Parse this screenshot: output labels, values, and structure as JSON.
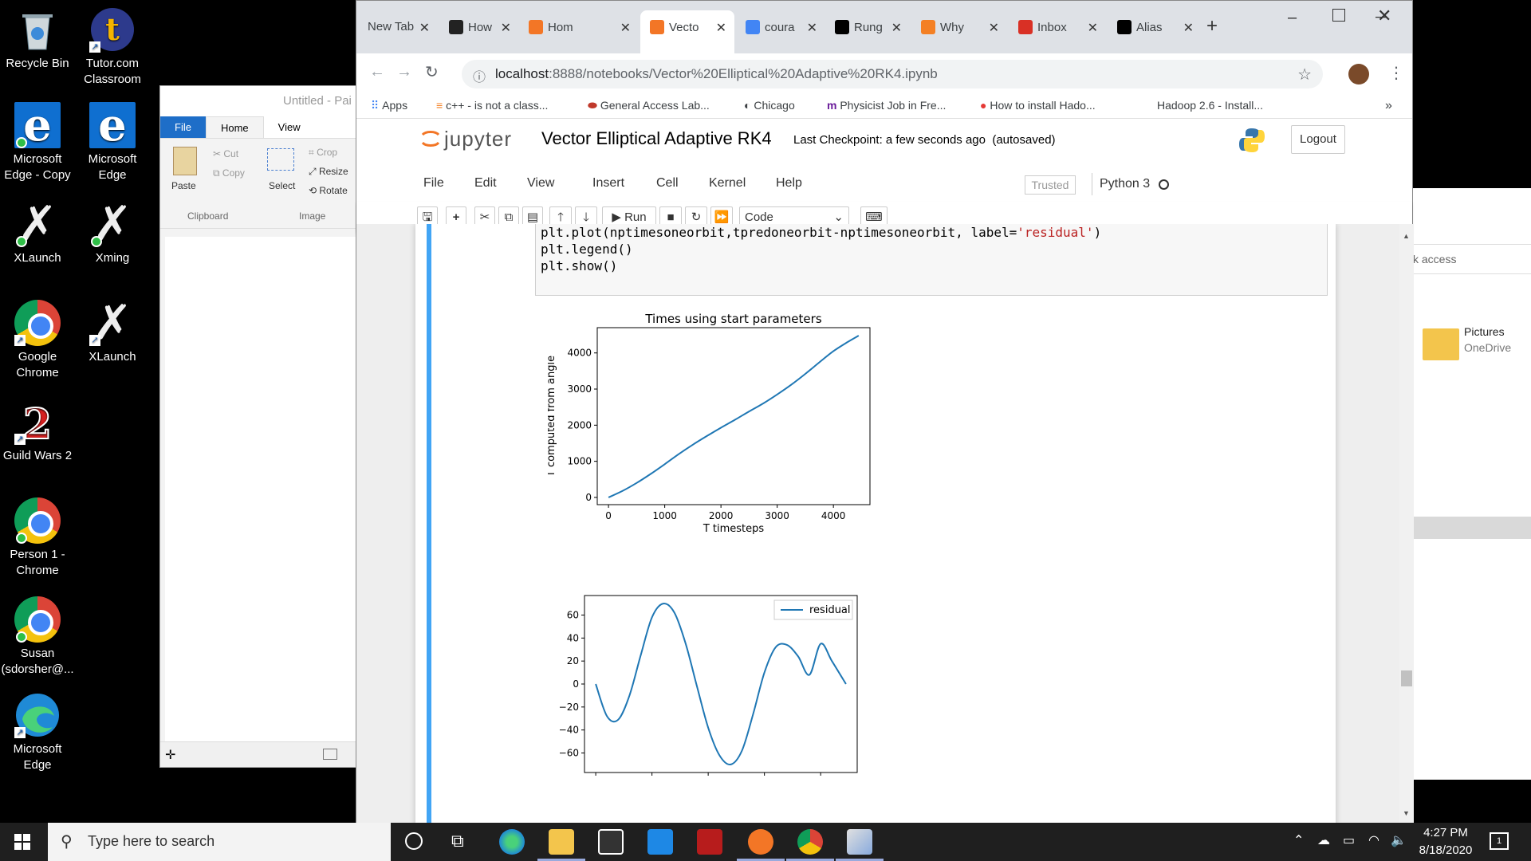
{
  "desktop": {
    "icons": [
      {
        "label1": "Recycle Bin",
        "label2": ""
      },
      {
        "label1": "Tutor.com",
        "label2": "Classroom"
      },
      {
        "label1": "Microsoft",
        "label2": "Edge - Copy"
      },
      {
        "label1": "Microsoft",
        "label2": "Edge"
      },
      {
        "label1": "XLaunch",
        "label2": ""
      },
      {
        "label1": "Xming",
        "label2": ""
      },
      {
        "label1": "Google",
        "label2": "Chrome"
      },
      {
        "label1": "XLaunch",
        "label2": ""
      },
      {
        "label1": "Guild Wars 2",
        "label2": ""
      },
      {
        "label1": "Person 1 -",
        "label2": "Chrome"
      },
      {
        "label1": "Susan",
        "label2": "(sdorsher@..."
      },
      {
        "label1": "Microsoft",
        "label2": "Edge"
      }
    ]
  },
  "paint": {
    "title": "Untitled - Pai",
    "tabs": [
      "File",
      "Home",
      "View"
    ],
    "clipboard": {
      "paste": "Paste",
      "cut": "Cut",
      "copy": "Copy",
      "group": "Clipboard"
    },
    "image": {
      "select": "Select",
      "crop": "Crop",
      "resize": "Resize",
      "rotate": "Rotate",
      "group": "Image"
    }
  },
  "explorer": {
    "access_text": "k access",
    "pictures": "Pictures",
    "onedrive": "OneDrive"
  },
  "browser": {
    "tabs": [
      {
        "label": "New Tab",
        "icon": "none",
        "color": "#dee1e6"
      },
      {
        "label": "How",
        "icon": "hex-icon",
        "color": "#222222"
      },
      {
        "label": "Hom",
        "icon": "jupyter-icon",
        "color": "#f37626"
      },
      {
        "label": "Vecto",
        "icon": "notebook-icon",
        "color": "#f37626"
      },
      {
        "label": "coura",
        "icon": "google-icon",
        "color": "#4285f4"
      },
      {
        "label": "Rung",
        "icon": "wikipedia-icon",
        "color": "#000000"
      },
      {
        "label": "Why",
        "icon": "stackoverflow-icon",
        "color": "#f48024"
      },
      {
        "label": "Inbox",
        "icon": "gmail-icon",
        "color": "#d93025"
      },
      {
        "label": "Alias",
        "icon": "wikipedia-icon",
        "color": "#000000"
      }
    ],
    "active_tab": 3,
    "url_host": "localhost",
    "url_rest": ":8888/notebooks/Vector%20Elliptical%20Adaptive%20RK4.ipynb",
    "bookmarks": [
      "Apps",
      "c++ - is not a class...",
      "General Access Lab...",
      "Chicago",
      "Physicist Job in Fre...",
      "How to install Hado...",
      "Hadoop 2.6 - Install..."
    ],
    "more": "»"
  },
  "jupyter": {
    "logo": "jupyter",
    "notebook_title": "Vector Elliptical Adaptive RK4",
    "checkpoint": "Last Checkpoint: a few seconds ago",
    "autosaved": "(autosaved)",
    "logout": "Logout",
    "menu": [
      "File",
      "Edit",
      "View",
      "Insert",
      "Cell",
      "Kernel",
      "Help"
    ],
    "trusted": "Trusted",
    "kernel": "Python 3",
    "run_label": "Run",
    "cell_type": "Code",
    "code_lines": [
      {
        "pre": "plt.plot(nptimesoneorbit,tpredoneorbit-nptimesoneorbit, label=",
        "str": "'residual'",
        "post": ")"
      },
      {
        "pre": "plt.legend()",
        "str": "",
        "post": ""
      },
      {
        "pre": "plt.show()",
        "str": "",
        "post": ""
      }
    ]
  },
  "chart_data": [
    {
      "type": "line",
      "title": "Times using start parameters",
      "xlabel": "T timesteps",
      "ylabel": "T computed from angle",
      "xlim": [
        -200,
        4650
      ],
      "ylim": [
        -200,
        4700
      ],
      "xticks": [
        0,
        1000,
        2000,
        3000,
        4000
      ],
      "yticks": [
        0,
        1000,
        2000,
        3000,
        4000
      ],
      "color": "#1f77b4",
      "series": [
        {
          "x": [
            0,
            250,
            500,
            750,
            1000,
            1250,
            1500,
            1750,
            2000,
            2250,
            2500,
            2750,
            3000,
            3250,
            3500,
            3750,
            4000,
            4250,
            4450
          ],
          "y": [
            0,
            180,
            400,
            650,
            920,
            1200,
            1460,
            1700,
            1930,
            2150,
            2380,
            2600,
            2850,
            3120,
            3420,
            3740,
            4050,
            4300,
            4480
          ]
        }
      ]
    },
    {
      "type": "line",
      "title": "",
      "xlabel": "",
      "ylabel": "",
      "xlim": [
        -200,
        4650
      ],
      "ylim": [
        -77,
        77
      ],
      "yticks": [
        -60,
        -40,
        -20,
        0,
        20,
        40,
        60
      ],
      "legend": "top-right",
      "color": "#1f77b4",
      "series": [
        {
          "name": "residual",
          "x": [
            0,
            200,
            400,
            600,
            800,
            1000,
            1200,
            1400,
            1600,
            1800,
            2000,
            2200,
            2400,
            2600,
            2800,
            3000,
            3200,
            3400,
            3600,
            3800,
            4000,
            4200,
            4450
          ],
          "y": [
            0,
            -28,
            -31,
            -10,
            25,
            58,
            70,
            62,
            35,
            -2,
            -38,
            -62,
            -70,
            -58,
            -26,
            10,
            32,
            34,
            24,
            8,
            35,
            20,
            0
          ]
        }
      ]
    }
  ],
  "taskbar": {
    "search_placeholder": "Type here to search",
    "time": "4:27 PM",
    "date": "8/18/2020",
    "notif_count": "1"
  }
}
